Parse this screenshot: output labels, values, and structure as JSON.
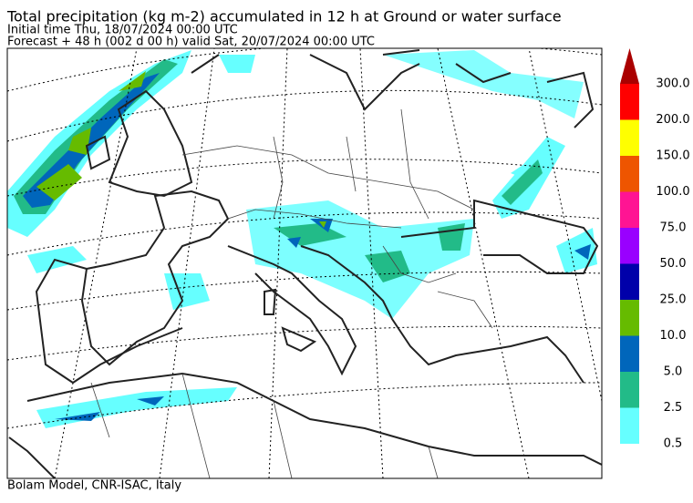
{
  "header": {
    "title": "Total precipitation (kg m-2) accumulated in  12 h at Ground or water surface",
    "initial_time": "Initial time  Thu, 18/07/2024  00:00 UTC",
    "forecast": "Forecast  +  48 h  (002 d 00 h)  valid Sat, 20/07/2024 00:00 UTC"
  },
  "legend": {
    "levels": [
      "0.5",
      "2.5",
      "5.0",
      "10.0",
      "25.0",
      "50.0",
      "75.0",
      "100.0",
      "150.0",
      "200.0",
      "300.0"
    ],
    "colors": [
      "#66ffff",
      "#22bb88",
      "#0066bb",
      "#66bb00",
      "#0000aa",
      "#9900ff",
      "#ff1493",
      "#ee5500",
      "#ffff00",
      "#ff0000"
    ],
    "over_color": "#aa0000"
  },
  "footer": "Bolam Model, CNR-ISAC, Italy"
}
